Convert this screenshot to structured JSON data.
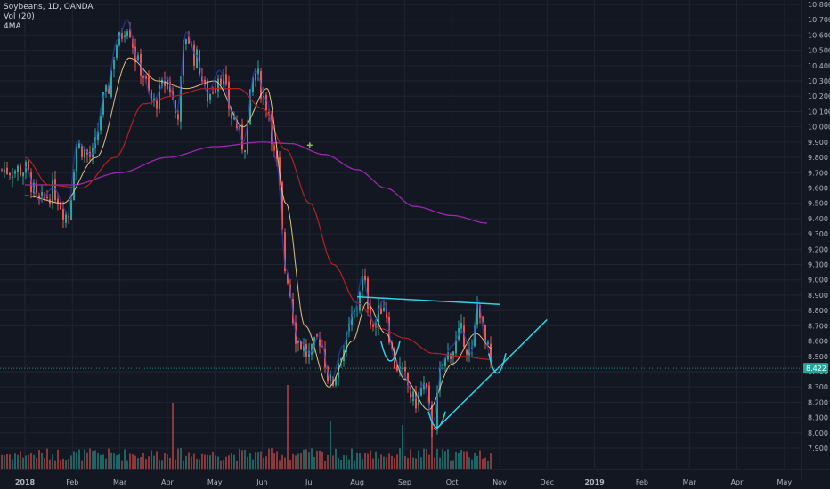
{
  "legend": {
    "symbol": "Soybeans, 1D, OANDA",
    "volume": "Vol (20)",
    "indicator": "4MA"
  },
  "chart_data": {
    "type": "candlestick",
    "title": "Soybeans, 1D, OANDA",
    "ylim": [
      7.9,
      10.8
    ],
    "y_ticks": [
      "10.800",
      "10.700",
      "10.600",
      "10.500",
      "10.400",
      "10.300",
      "10.200",
      "10.100",
      "10.000",
      "9.900",
      "9.800",
      "9.700",
      "9.600",
      "9.500",
      "9.400",
      "9.300",
      "9.200",
      "9.100",
      "9.000",
      "8.900",
      "8.800",
      "8.700",
      "8.600",
      "8.500",
      "8.400",
      "8.300",
      "8.200",
      "8.100",
      "8.000",
      "7.900"
    ],
    "x_ticks": [
      {
        "label": "2018",
        "month": 0,
        "bold": true
      },
      {
        "label": "Feb",
        "month": 1
      },
      {
        "label": "Mar",
        "month": 2
      },
      {
        "label": "Apr",
        "month": 3
      },
      {
        "label": "May",
        "month": 4
      },
      {
        "label": "Jun",
        "month": 5
      },
      {
        "label": "Jul",
        "month": 6
      },
      {
        "label": "Aug",
        "month": 7
      },
      {
        "label": "Sep",
        "month": 8
      },
      {
        "label": "Oct",
        "month": 9
      },
      {
        "label": "Nov",
        "month": 10
      },
      {
        "label": "Dec",
        "month": 11
      },
      {
        "label": "2019",
        "month": 12,
        "bold": true
      },
      {
        "label": "Feb",
        "month": 13
      },
      {
        "label": "Mar",
        "month": 14
      },
      {
        "label": "Apr",
        "month": 15
      },
      {
        "label": "May",
        "month": 16
      }
    ],
    "last_price": "8.422",
    "price_anchors": [
      [
        0,
        9.72
      ],
      [
        0.3,
        9.5
      ],
      [
        0.6,
        9.58
      ],
      [
        0.9,
        9.42
      ],
      [
        1.1,
        9.88
      ],
      [
        1.4,
        9.8
      ],
      [
        1.7,
        10.2
      ],
      [
        1.95,
        10.55
      ],
      [
        2.15,
        10.68
      ],
      [
        2.4,
        10.4
      ],
      [
        2.7,
        10.15
      ],
      [
        3.0,
        10.3
      ],
      [
        3.2,
        10.08
      ],
      [
        3.4,
        10.6
      ],
      [
        3.6,
        10.45
      ],
      [
        3.85,
        10.2
      ],
      [
        4.1,
        10.35
      ],
      [
        4.4,
        10.05
      ],
      [
        4.6,
        9.88
      ],
      [
        4.85,
        10.35
      ],
      [
        5.1,
        10.15
      ],
      [
        5.3,
        9.75
      ],
      [
        5.5,
        9.05
      ],
      [
        5.75,
        8.6
      ],
      [
        6.0,
        8.5
      ],
      [
        6.2,
        8.62
      ],
      [
        6.45,
        8.32
      ],
      [
        6.7,
        8.55
      ],
      [
        6.95,
        8.78
      ],
      [
        7.1,
        9.0
      ],
      [
        7.35,
        8.7
      ],
      [
        7.55,
        8.85
      ],
      [
        7.8,
        8.45
      ],
      [
        8.0,
        8.35
      ],
      [
        8.2,
        8.2
      ],
      [
        8.4,
        8.3
      ],
      [
        8.6,
        8.05
      ],
      [
        8.8,
        8.45
      ],
      [
        9.0,
        8.55
      ],
      [
        9.2,
        8.65
      ],
      [
        9.4,
        8.5
      ],
      [
        9.55,
        8.85
      ],
      [
        9.7,
        8.58
      ],
      [
        9.85,
        8.42
      ]
    ],
    "sma_anchors": [
      [
        0,
        9.8
      ],
      [
        0.5,
        9.62
      ],
      [
        1.2,
        9.6
      ],
      [
        1.9,
        9.8
      ],
      [
        2.5,
        10.15
      ],
      [
        3.1,
        10.2
      ],
      [
        3.8,
        10.25
      ],
      [
        4.5,
        10.25
      ],
      [
        5.0,
        10.12
      ],
      [
        5.5,
        9.85
      ],
      [
        6.0,
        9.5
      ],
      [
        6.5,
        9.1
      ],
      [
        7.0,
        8.85
      ],
      [
        7.5,
        8.68
      ],
      [
        8.0,
        8.62
      ],
      [
        8.6,
        8.52
      ],
      [
        9.2,
        8.5
      ],
      [
        9.8,
        8.48
      ]
    ],
    "long_ma_anchors": [
      [
        0,
        9.62
      ],
      [
        1.0,
        9.62
      ],
      [
        2.0,
        9.7
      ],
      [
        3.0,
        9.8
      ],
      [
        4.0,
        9.87
      ],
      [
        5.0,
        9.9
      ],
      [
        5.6,
        9.89
      ],
      [
        6.3,
        9.82
      ],
      [
        7.0,
        9.72
      ],
      [
        7.6,
        9.6
      ],
      [
        8.2,
        9.48
      ],
      [
        9.0,
        9.42
      ],
      [
        9.75,
        9.37
      ]
    ],
    "fast_ma_anchors": [
      [
        0,
        9.55
      ],
      [
        0.8,
        9.5
      ],
      [
        1.5,
        9.8
      ],
      [
        2.2,
        10.45
      ],
      [
        2.8,
        10.3
      ],
      [
        3.4,
        10.25
      ],
      [
        4.0,
        10.3
      ],
      [
        4.6,
        10.0
      ],
      [
        5.1,
        10.25
      ],
      [
        5.5,
        9.5
      ],
      [
        5.9,
        8.7
      ],
      [
        6.4,
        8.3
      ],
      [
        6.9,
        8.6
      ],
      [
        7.2,
        8.85
      ],
      [
        7.6,
        8.65
      ],
      [
        8.0,
        8.35
      ],
      [
        8.5,
        8.15
      ],
      [
        9.0,
        8.45
      ],
      [
        9.5,
        8.65
      ],
      [
        9.85,
        8.55
      ]
    ],
    "spike_volumes": [
      [
        3.1,
        0.75
      ],
      [
        5.55,
        0.95
      ],
      [
        6.45,
        0.55
      ],
      [
        7.95,
        0.5
      ],
      [
        8.6,
        0.6
      ]
    ],
    "trendlines": [
      {
        "name": "resistance",
        "from": [
          7.0,
          8.89
        ],
        "to": [
          10.0,
          8.84
        ]
      },
      {
        "name": "support",
        "from": [
          8.65,
          8.02
        ],
        "to": [
          11.0,
          8.74
        ]
      }
    ],
    "shapes": [
      {
        "name": "left-shoulder",
        "center": [
          7.7,
          8.5
        ],
        "rx": 0.2,
        "ry": 0.1
      },
      {
        "name": "head",
        "center": [
          8.68,
          8.06
        ],
        "rx": 0.18,
        "ry": 0.08
      },
      {
        "name": "right-shoulder",
        "center": [
          9.95,
          8.42
        ],
        "rx": 0.18,
        "ry": 0.1
      }
    ],
    "marker": [
      6.0,
      9.88
    ],
    "colors": {
      "background": "#131722",
      "grid": "#1f2433",
      "up": "#26a69a",
      "down": "#ef5350",
      "sma": "#b22222",
      "long_ma": "#9c27b0",
      "fast_ma": "#e0c080",
      "overlay_blue": "#2a3eb1",
      "trendline": "#2ed3e6",
      "price_label": "#26a69a",
      "axis_text": "#b2b5be"
    }
  }
}
